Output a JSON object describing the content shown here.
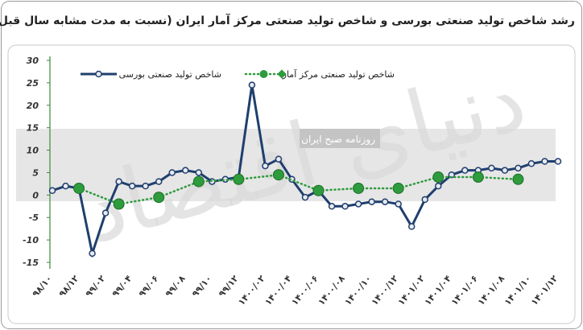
{
  "chart_data": {
    "type": "line",
    "title": "رشد شاخص تولید صنعتی بورسی  و شاخص تولید صنعتی مرکز آمار ایران (نسبت به مدت مشابه سال قبل)",
    "watermark": "دنیای اقتصاد",
    "annotation": "روزنامه صبح ایران",
    "categories": [
      "۹۸/۱۰",
      null,
      "۹۸/۱۲",
      null,
      "۹۹/۰۲",
      null,
      "۹۹/۰۴",
      null,
      "۹۹/۰۶",
      null,
      "۹۹/۰۸",
      null,
      "۹۹/۱۰",
      null,
      "۹۹/۱۲",
      null,
      "۱۴۰۰/۰۲",
      null,
      "۱۴۰۰/۰۴",
      null,
      "۱۴۰۰/۰۶",
      null,
      "۱۴۰۰/۰۸",
      null,
      "۱۴۰۰/۱۰",
      null,
      "۱۴۰۰/۱۲",
      null,
      "۱۴۰۱/۰۲",
      null,
      "۱۴۰۱/۰۴",
      null,
      "۱۴۰۱/۰۶",
      null,
      "۱۴۰۱/۰۸",
      null,
      "۱۴۰۱/۱۰",
      null,
      "۱۴۰۱/۱۲"
    ],
    "series": [
      {
        "name": "شاخص تولید صنعتی بورسی",
        "color": "#1f3f6e",
        "style": "solid",
        "values": [
          1,
          2,
          1.5,
          -13,
          -4,
          3,
          2,
          2,
          3,
          5,
          5.5,
          5,
          3,
          3.5,
          4,
          24.5,
          6.5,
          8,
          3.5,
          -0.5,
          1,
          -2.5,
          -2.5,
          -2,
          -1.5,
          -1.5,
          -2,
          -7,
          -1,
          2,
          4.5,
          5.5,
          5.5,
          6,
          5.5,
          6,
          7,
          7.5,
          7.5
        ]
      },
      {
        "name": "شاخص تولید صنعتی مرکز آمار",
        "color": "#2e9b3c",
        "style": "dotted",
        "values": [
          null,
          null,
          1.5,
          null,
          null,
          -2,
          null,
          null,
          -0.5,
          null,
          null,
          3,
          null,
          null,
          3.5,
          null,
          null,
          4.5,
          null,
          null,
          1,
          null,
          null,
          1.5,
          null,
          null,
          1.5,
          null,
          null,
          4,
          null,
          null,
          4,
          null,
          null,
          3.5,
          null,
          null,
          null
        ]
      }
    ],
    "ylim": [
      -15,
      30
    ],
    "yticks": [
      30,
      25,
      20,
      15,
      10,
      5,
      0,
      -5,
      -10,
      -15
    ]
  }
}
